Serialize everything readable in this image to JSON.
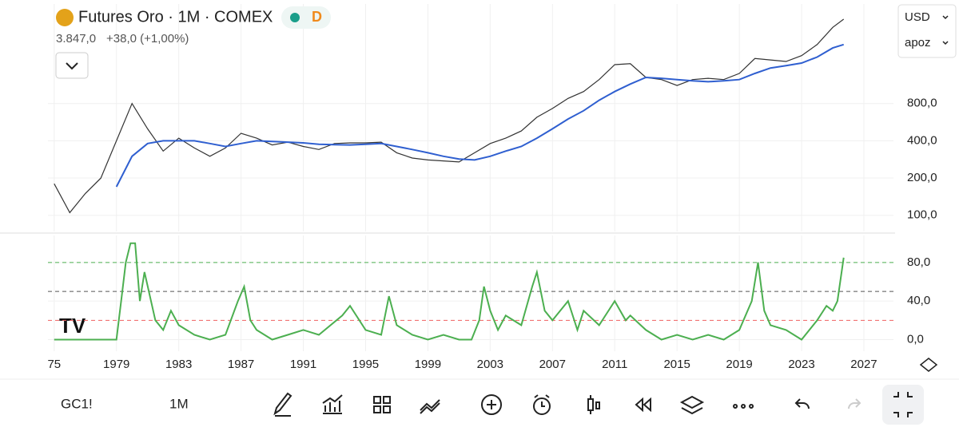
{
  "header": {
    "title": "Futures Oro · 1M · COMEX",
    "badge": "D",
    "price": "3.847,0",
    "change": "+38,0 (+1,00%)",
    "currency": "USD",
    "scale_mode": "apoz"
  },
  "toolbar": {
    "symbol": "GC1!",
    "interval": "1M"
  },
  "chart_data": [
    {
      "type": "line",
      "yscale": "log",
      "grid": true,
      "x": [
        1975,
        1976,
        1977,
        1978,
        1979,
        1980,
        1981,
        1982,
        1983,
        1984,
        1985,
        1986,
        1987,
        1988,
        1989,
        1990,
        1991,
        1992,
        1993,
        1994,
        1995,
        1996,
        1997,
        1998,
        1999,
        2000,
        2001,
        2002,
        2003,
        2004,
        2005,
        2006,
        2007,
        2008,
        2009,
        2010,
        2011,
        2012,
        2013,
        2014,
        2015,
        2016,
        2017,
        2018,
        2019,
        2020,
        2021,
        2022,
        2023,
        2024,
        2025,
        2025.7
      ],
      "series": [
        {
          "color": "#333333",
          "values": [
            180,
            105,
            150,
            200,
            400,
            800,
            500,
            330,
            420,
            350,
            300,
            350,
            460,
            420,
            370,
            390,
            360,
            340,
            380,
            385,
            385,
            390,
            320,
            290,
            280,
            275,
            270,
            320,
            380,
            420,
            480,
            620,
            730,
            880,
            1000,
            1250,
            1650,
            1680,
            1300,
            1250,
            1120,
            1250,
            1280,
            1250,
            1400,
            1850,
            1800,
            1750,
            1950,
            2400,
            3300,
            3847
          ]
        },
        {
          "color": "#2f5fd0",
          "values": [
            null,
            null,
            null,
            null,
            170,
            300,
            380,
            400,
            400,
            400,
            380,
            360,
            380,
            400,
            395,
            390,
            385,
            375,
            372,
            370,
            375,
            380,
            360,
            340,
            320,
            300,
            285,
            280,
            300,
            330,
            360,
            420,
            500,
            600,
            700,
            850,
            1000,
            1150,
            1300,
            1280,
            1250,
            1220,
            1200,
            1220,
            1250,
            1400,
            1550,
            1620,
            1700,
            1900,
            2250,
            2400
          ]
        }
      ],
      "xlim": [
        1974.6,
        2028.9
      ],
      "xticks": [
        1975,
        1979,
        1983,
        1987,
        1991,
        1995,
        1999,
        2003,
        2007,
        2011,
        2015,
        2019,
        2023,
        2027
      ],
      "ylim": [
        74,
        5100
      ],
      "yticks": [
        {
          "value": 100,
          "label": "100,0"
        },
        {
          "value": 200,
          "label": "200,0"
        },
        {
          "value": 400,
          "label": "400,0"
        },
        {
          "value": 800,
          "label": "800,0"
        }
      ]
    },
    {
      "type": "line",
      "grid": true,
      "x": [
        1975,
        1979,
        1979.3,
        1979.6,
        1979.9,
        1980.2,
        1980.5,
        1980.8,
        1981.5,
        1982,
        1982.5,
        1983,
        1984,
        1985,
        1986,
        1986.8,
        1987.2,
        1987.6,
        1988,
        1989,
        1990,
        1991,
        1992,
        1993.5,
        1994,
        1995,
        1996,
        1996.5,
        1997,
        1998,
        1999,
        2000,
        2001,
        2001.8,
        2002.3,
        2002.6,
        2003,
        2003.5,
        2004,
        2005,
        2005.7,
        2006,
        2006.5,
        2007,
        2008,
        2008.6,
        2009,
        2010,
        2011,
        2011.7,
        2012,
        2013,
        2014,
        2015,
        2016,
        2017,
        2018,
        2019,
        2019.8,
        2020.2,
        2020.6,
        2021,
        2022,
        2023,
        2024,
        2024.6,
        2025,
        2025.3,
        2025.7
      ],
      "series": [
        {
          "color": "#4caf50",
          "values": [
            0,
            0,
            40,
            80,
            100,
            100,
            40,
            70,
            20,
            10,
            30,
            15,
            5,
            0,
            5,
            40,
            55,
            20,
            10,
            0,
            5,
            10,
            5,
            25,
            35,
            10,
            5,
            45,
            15,
            5,
            0,
            5,
            0,
            0,
            20,
            55,
            30,
            10,
            25,
            15,
            55,
            70,
            30,
            20,
            40,
            10,
            30,
            15,
            40,
            20,
            25,
            10,
            0,
            5,
            0,
            5,
            0,
            10,
            40,
            80,
            30,
            15,
            10,
            0,
            20,
            35,
            30,
            40,
            85
          ]
        }
      ],
      "levels": [
        {
          "value": 80,
          "color": "#4caf50"
        },
        {
          "value": 50,
          "color": "#555555"
        },
        {
          "value": 20,
          "color": "#f06060"
        }
      ],
      "xlim": [
        1974.6,
        2028.9
      ],
      "xticks": [
        {
          "value": 1975,
          "label": "75"
        },
        1979,
        1983,
        1987,
        1991,
        1995,
        1999,
        2003,
        2007,
        2011,
        2015,
        2019,
        2023,
        2027
      ],
      "ylim": [
        -12,
        108
      ],
      "yticks": [
        {
          "value": 0,
          "label": "0,0"
        },
        {
          "value": 40,
          "label": "40,0"
        },
        {
          "value": 80,
          "label": "80,0"
        }
      ]
    }
  ]
}
